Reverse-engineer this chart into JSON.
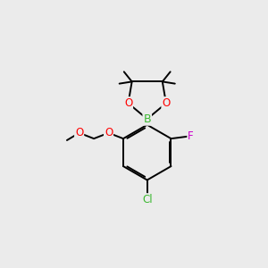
{
  "background_color": "#ebebeb",
  "atom_colors": {
    "C": "#000000",
    "B": "#3cb832",
    "O": "#ff0000",
    "F": "#cc00cc",
    "Cl": "#3cb832",
    "H": "#000000"
  },
  "bond_color": "#000000",
  "bond_width": 1.4,
  "font_size_atoms": 8.5
}
